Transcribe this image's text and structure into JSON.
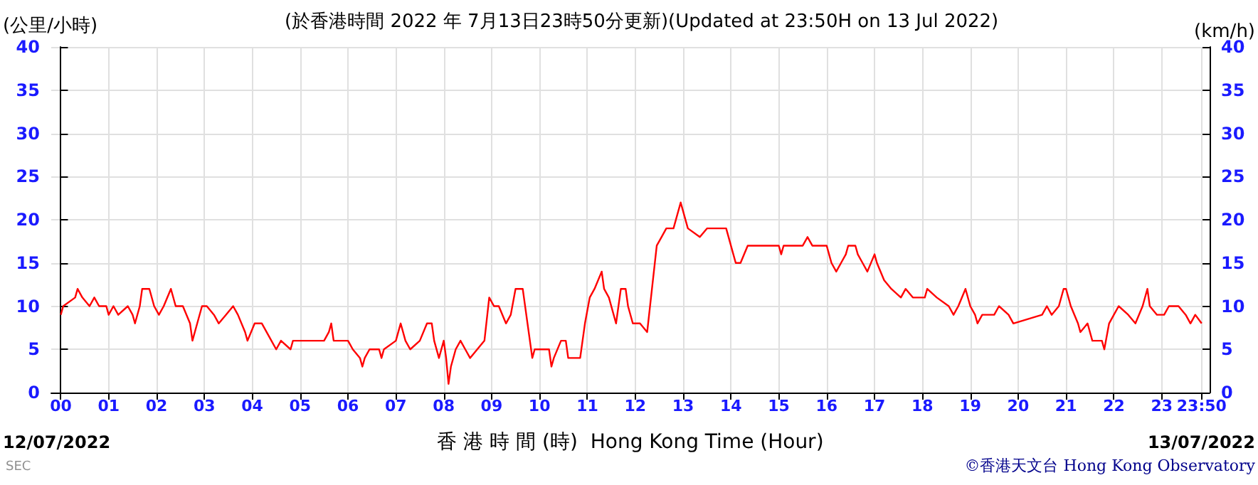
{
  "chart_data": {
    "type": "line",
    "title": "(於香港時間 2022 年 7月13日23時50分更新)(Updated at 23:50H on 13 Jul 2022)",
    "ylabel": "(公里/小時)",
    "y2label": "(km/h)",
    "xlabel": "香 港 時 間 (時)  Hong Kong Time (Hour)",
    "annotations": [
      "12/07/2022",
      "13/07/2022",
      "SEC",
      "©香港天文台 Hong Kong Observatory"
    ],
    "x": [
      0,
      0.05,
      0.3,
      0.35,
      0.45,
      0.6,
      0.7,
      0.8,
      0.95,
      1.0,
      1.1,
      1.2,
      1.4,
      1.5,
      1.55,
      1.65,
      1.7,
      1.85,
      1.95,
      2.05,
      2.15,
      2.3,
      2.4,
      2.55,
      2.7,
      2.75,
      2.85,
      2.95,
      3.05,
      3.2,
      3.3,
      3.45,
      3.6,
      3.7,
      3.85,
      3.9,
      4.05,
      4.2,
      4.4,
      4.5,
      4.6,
      4.8,
      4.85,
      5.5,
      5.6,
      5.65,
      5.7,
      6.0,
      6.1,
      6.25,
      6.3,
      6.35,
      6.45,
      6.65,
      6.7,
      6.75,
      7.0,
      7.1,
      7.2,
      7.3,
      7.5,
      7.65,
      7.75,
      7.8,
      7.9,
      7.95,
      8.0,
      8.05,
      8.1,
      8.15,
      8.25,
      8.35,
      8.45,
      8.55,
      8.7,
      8.85,
      8.95,
      9.05,
      9.15,
      9.3,
      9.4,
      9.5,
      9.65,
      9.75,
      9.85,
      9.9,
      10.0,
      10.2,
      10.25,
      10.3,
      10.45,
      10.55,
      10.6,
      10.85,
      10.95,
      11.05,
      11.15,
      11.3,
      11.35,
      11.45,
      11.6,
      11.7,
      11.8,
      11.85,
      11.95,
      12.1,
      12.25,
      12.35,
      12.45,
      12.55,
      12.65,
      12.8,
      12.95,
      13.0,
      13.1,
      13.35,
      13.5,
      13.9,
      14.05,
      14.1,
      14.2,
      14.35,
      14.5,
      15.0,
      15.05,
      15.1,
      15.5,
      15.6,
      15.7,
      16.0,
      16.05,
      16.1,
      16.2,
      16.3,
      16.4,
      16.45,
      16.6,
      16.65,
      16.75,
      16.85,
      17.0,
      17.05,
      17.2,
      17.35,
      17.55,
      17.65,
      17.8,
      18.05,
      18.1,
      18.3,
      18.55,
      18.65,
      18.75,
      18.9,
      19.0,
      19.1,
      19.15,
      19.25,
      19.5,
      19.6,
      19.8,
      19.9,
      20.5,
      20.6,
      20.7,
      20.85,
      20.95,
      21.0,
      21.1,
      21.25,
      21.3,
      21.45,
      21.55,
      21.75,
      21.8,
      21.9,
      22.0,
      22.1,
      22.3,
      22.45,
      22.6,
      22.7,
      22.75,
      22.9,
      23.05,
      23.15,
      23.35,
      23.5,
      23.6,
      23.7,
      23.8333
    ],
    "series": [
      {
        "color": "#ff0000",
        "values": [
          9,
          10,
          11,
          12,
          11,
          10,
          11,
          10,
          10,
          9,
          10,
          9,
          10,
          9,
          8,
          10,
          12,
          12,
          10,
          9,
          10,
          12,
          10,
          10,
          8,
          6,
          8,
          10,
          10,
          9,
          8,
          9,
          10,
          9,
          7,
          6,
          8,
          8,
          6,
          5,
          6,
          5,
          6,
          6,
          7,
          8,
          6,
          6,
          5,
          4,
          3,
          4,
          5,
          5,
          4,
          5,
          6,
          8,
          6,
          5,
          6,
          8,
          8,
          6,
          4,
          5,
          6,
          4,
          1,
          3,
          5,
          6,
          5,
          4,
          5,
          6,
          11,
          10,
          10,
          8,
          9,
          12,
          12,
          8,
          4,
          5,
          5,
          5,
          3,
          4,
          6,
          6,
          4,
          4,
          8,
          11,
          12,
          14,
          12,
          11,
          8,
          12,
          12,
          10,
          8,
          8,
          7,
          12,
          17,
          18,
          19,
          19,
          22,
          21,
          19,
          18,
          19,
          19,
          16,
          15,
          15,
          17,
          17,
          17,
          16,
          17,
          17,
          18,
          17,
          17,
          16,
          15,
          14,
          15,
          16,
          17,
          17,
          16,
          15,
          14,
          16,
          15,
          13,
          12,
          11,
          12,
          11,
          11,
          12,
          11,
          10,
          9,
          10,
          12,
          10,
          9,
          8,
          9,
          9,
          10,
          9,
          8,
          9,
          10,
          9,
          10,
          12,
          12,
          10,
          8,
          7,
          8,
          6,
          6,
          5,
          8,
          9,
          10,
          9,
          8,
          10,
          12,
          10,
          9,
          9,
          10,
          10,
          9,
          8,
          9,
          8
        ]
      }
    ],
    "xlim": [
      -0.2,
      24
    ],
    "xticks": [
      {
        "value": 0,
        "label": "00"
      },
      {
        "value": 1,
        "label": "01"
      },
      {
        "value": 2,
        "label": "02"
      },
      {
        "value": 3,
        "label": "03"
      },
      {
        "value": 4,
        "label": "04"
      },
      {
        "value": 5,
        "label": "05"
      },
      {
        "value": 6,
        "label": "06"
      },
      {
        "value": 7,
        "label": "07"
      },
      {
        "value": 8,
        "label": "08"
      },
      {
        "value": 9,
        "label": "09"
      },
      {
        "value": 10,
        "label": "10"
      },
      {
        "value": 11,
        "label": "11"
      },
      {
        "value": 12,
        "label": "12"
      },
      {
        "value": 13,
        "label": "13"
      },
      {
        "value": 14,
        "label": "14"
      },
      {
        "value": 15,
        "label": "15"
      },
      {
        "value": 16,
        "label": "16"
      },
      {
        "value": 17,
        "label": "17"
      },
      {
        "value": 18,
        "label": "18"
      },
      {
        "value": 19,
        "label": "19"
      },
      {
        "value": 20,
        "label": "20"
      },
      {
        "value": 21,
        "label": "21"
      },
      {
        "value": 22,
        "label": "22"
      },
      {
        "value": 23,
        "label": "23"
      },
      {
        "value": 23.8333,
        "label": "23:50"
      }
    ],
    "ylim": [
      0,
      40
    ],
    "yticks": [
      0,
      5,
      10,
      15,
      20,
      25,
      30,
      35,
      40
    ],
    "y2lim": [
      0,
      40
    ],
    "y2ticks": [
      0,
      5,
      10,
      15,
      20,
      25,
      30,
      35,
      40
    ],
    "grid": true,
    "marker": "none",
    "line_style": "solid"
  }
}
